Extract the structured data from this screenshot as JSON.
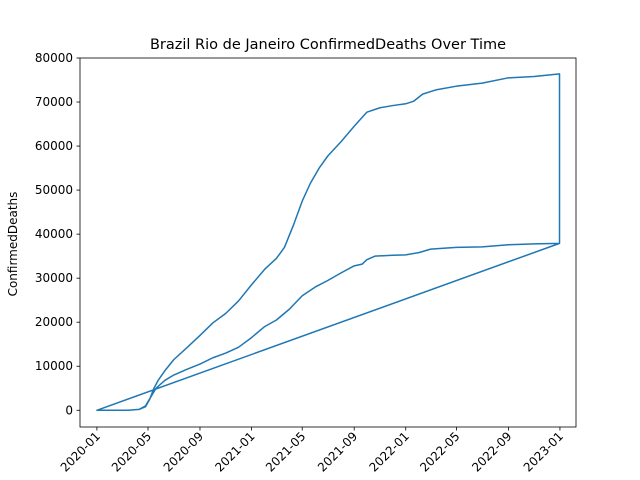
{
  "chart_data": {
    "type": "line",
    "title": "Brazil Rio de Janeiro ConfirmedDeaths Over Time",
    "xlabel": "",
    "ylabel": "ConfirmedDeaths",
    "ylim": [
      -3800,
      80000
    ],
    "xlim": [
      "2019-11-22",
      "2023-02-08"
    ],
    "grid": false,
    "y_ticks": [
      0,
      10000,
      20000,
      30000,
      40000,
      50000,
      60000,
      70000,
      80000
    ],
    "x_ticks": [
      "2020-01",
      "2020-05",
      "2020-09",
      "2021-01",
      "2021-05",
      "2021-09",
      "2022-01",
      "2022-05",
      "2022-09",
      "2023-01"
    ],
    "series": [
      {
        "color": "#1f77b4",
        "points": [
          [
            "2020-01-01",
            0
          ],
          [
            "2020-03-15",
            0
          ],
          [
            "2020-04-10",
            200
          ],
          [
            "2020-04-25",
            800
          ],
          [
            "2020-05-05",
            2500
          ],
          [
            "2020-05-15",
            5000
          ],
          [
            "2020-05-25",
            6800
          ],
          [
            "2020-06-10",
            9000
          ],
          [
            "2020-07-01",
            11500
          ],
          [
            "2020-08-01",
            14200
          ],
          [
            "2020-09-01",
            17000
          ],
          [
            "2020-10-01",
            19800
          ],
          [
            "2020-11-01",
            22000
          ],
          [
            "2020-12-01",
            24800
          ],
          [
            "2021-01-01",
            28500
          ],
          [
            "2021-02-01",
            32000
          ],
          [
            "2021-03-01",
            34500
          ],
          [
            "2021-03-20",
            37000
          ],
          [
            "2021-04-10",
            42000
          ],
          [
            "2021-05-01",
            47500
          ],
          [
            "2021-05-20",
            51500
          ],
          [
            "2021-06-10",
            55000
          ],
          [
            "2021-07-01",
            57800
          ],
          [
            "2021-08-01",
            61000
          ],
          [
            "2021-09-01",
            64500
          ],
          [
            "2021-10-01",
            67700
          ],
          [
            "2021-11-01",
            68700
          ],
          [
            "2021-12-01",
            69200
          ],
          [
            "2022-01-01",
            69600
          ],
          [
            "2022-01-20",
            70200
          ],
          [
            "2022-02-10",
            71800
          ],
          [
            "2022-03-15",
            72800
          ],
          [
            "2022-05-01",
            73600
          ],
          [
            "2022-07-01",
            74300
          ],
          [
            "2022-09-01",
            75500
          ],
          [
            "2022-11-01",
            75800
          ],
          [
            "2022-12-31",
            76400
          ],
          [
            "2022-12-31",
            37900
          ],
          [
            "2022-11-01",
            37800
          ],
          [
            "2022-09-01",
            37600
          ],
          [
            "2022-07-01",
            37100
          ],
          [
            "2022-05-01",
            37000
          ],
          [
            "2022-03-01",
            36600
          ],
          [
            "2022-02-01",
            35800
          ],
          [
            "2022-01-01",
            35300
          ],
          [
            "2021-12-01",
            35200
          ],
          [
            "2021-10-20",
            35000
          ],
          [
            "2021-10-01",
            34200
          ],
          [
            "2021-09-20",
            33200
          ],
          [
            "2021-09-01",
            32800
          ],
          [
            "2021-08-01",
            31200
          ],
          [
            "2021-07-01",
            29500
          ],
          [
            "2021-06-01",
            28000
          ],
          [
            "2021-05-01",
            26000
          ],
          [
            "2021-04-01",
            23000
          ],
          [
            "2021-03-01",
            20500
          ],
          [
            "2021-02-01",
            19000
          ],
          [
            "2021-01-01",
            16500
          ],
          [
            "2020-12-01",
            14300
          ],
          [
            "2020-11-01",
            13000
          ],
          [
            "2020-10-01",
            11900
          ],
          [
            "2020-09-01",
            10500
          ],
          [
            "2020-08-01",
            9300
          ],
          [
            "2020-07-01",
            8000
          ],
          [
            "2020-06-10",
            6800
          ],
          [
            "2020-05-20",
            5000
          ],
          [
            "2020-05-05",
            2600
          ],
          [
            "2020-04-25",
            1000
          ],
          [
            "2020-04-10",
            200
          ],
          [
            "2020-03-15",
            0
          ],
          [
            "2020-01-01",
            0
          ],
          [
            "2022-12-31",
            37900
          ]
        ]
      }
    ]
  }
}
